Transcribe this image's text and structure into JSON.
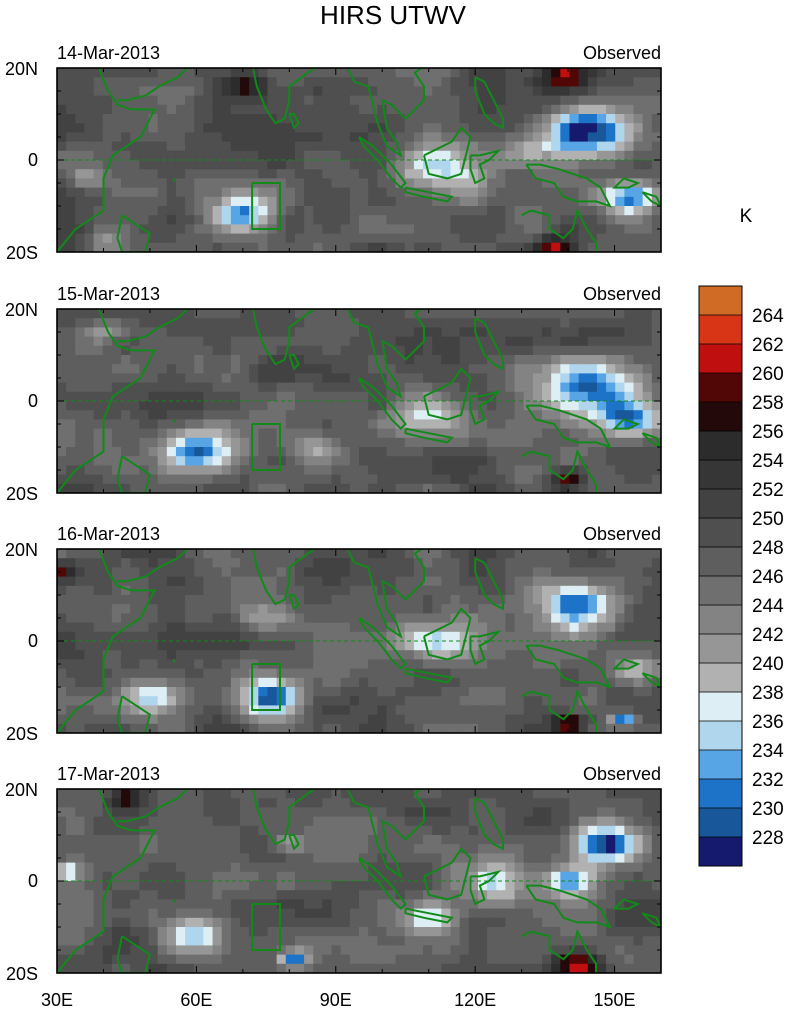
{
  "chart_data": {
    "type": "heatmap",
    "title": "HIRS UTWV",
    "units": "K",
    "panels": [
      {
        "date": "14-Mar-2013",
        "label": "Observed"
      },
      {
        "date": "15-Mar-2013",
        "label": "Observed"
      },
      {
        "date": "16-Mar-2013",
        "label": "Observed"
      },
      {
        "date": "17-Mar-2013",
        "label": "Observed"
      }
    ],
    "lon_range": [
      30,
      160
    ],
    "lat_range": [
      -20,
      20
    ],
    "x_ticks": [
      "30E",
      "60E",
      "90E",
      "120E",
      "150E"
    ],
    "x_tick_values": [
      30,
      60,
      90,
      120,
      150
    ],
    "y_ticks": [
      "20N",
      "0",
      "20S"
    ],
    "y_tick_values": [
      20,
      0,
      -20
    ],
    "colorbar_levels": [
      228,
      230,
      232,
      234,
      236,
      238,
      240,
      242,
      244,
      246,
      248,
      250,
      252,
      254,
      256,
      258,
      260,
      262,
      264
    ],
    "colorbar_colors": [
      "#151a6e",
      "#18579a",
      "#1c73c7",
      "#58a5e6",
      "#afd6ec",
      "#ddeff4",
      "#b1b1b1",
      "#969696",
      "#838383",
      "#6f6f6f",
      "#5e5e5e",
      "#4f4f4f",
      "#424242",
      "#363636",
      "#2c2c2c",
      "#230909",
      "#520707",
      "#c00f0f",
      "#d73516",
      "#cf6b25"
    ],
    "coastline_color": "#118a1a",
    "equator_line": "dashed"
  }
}
